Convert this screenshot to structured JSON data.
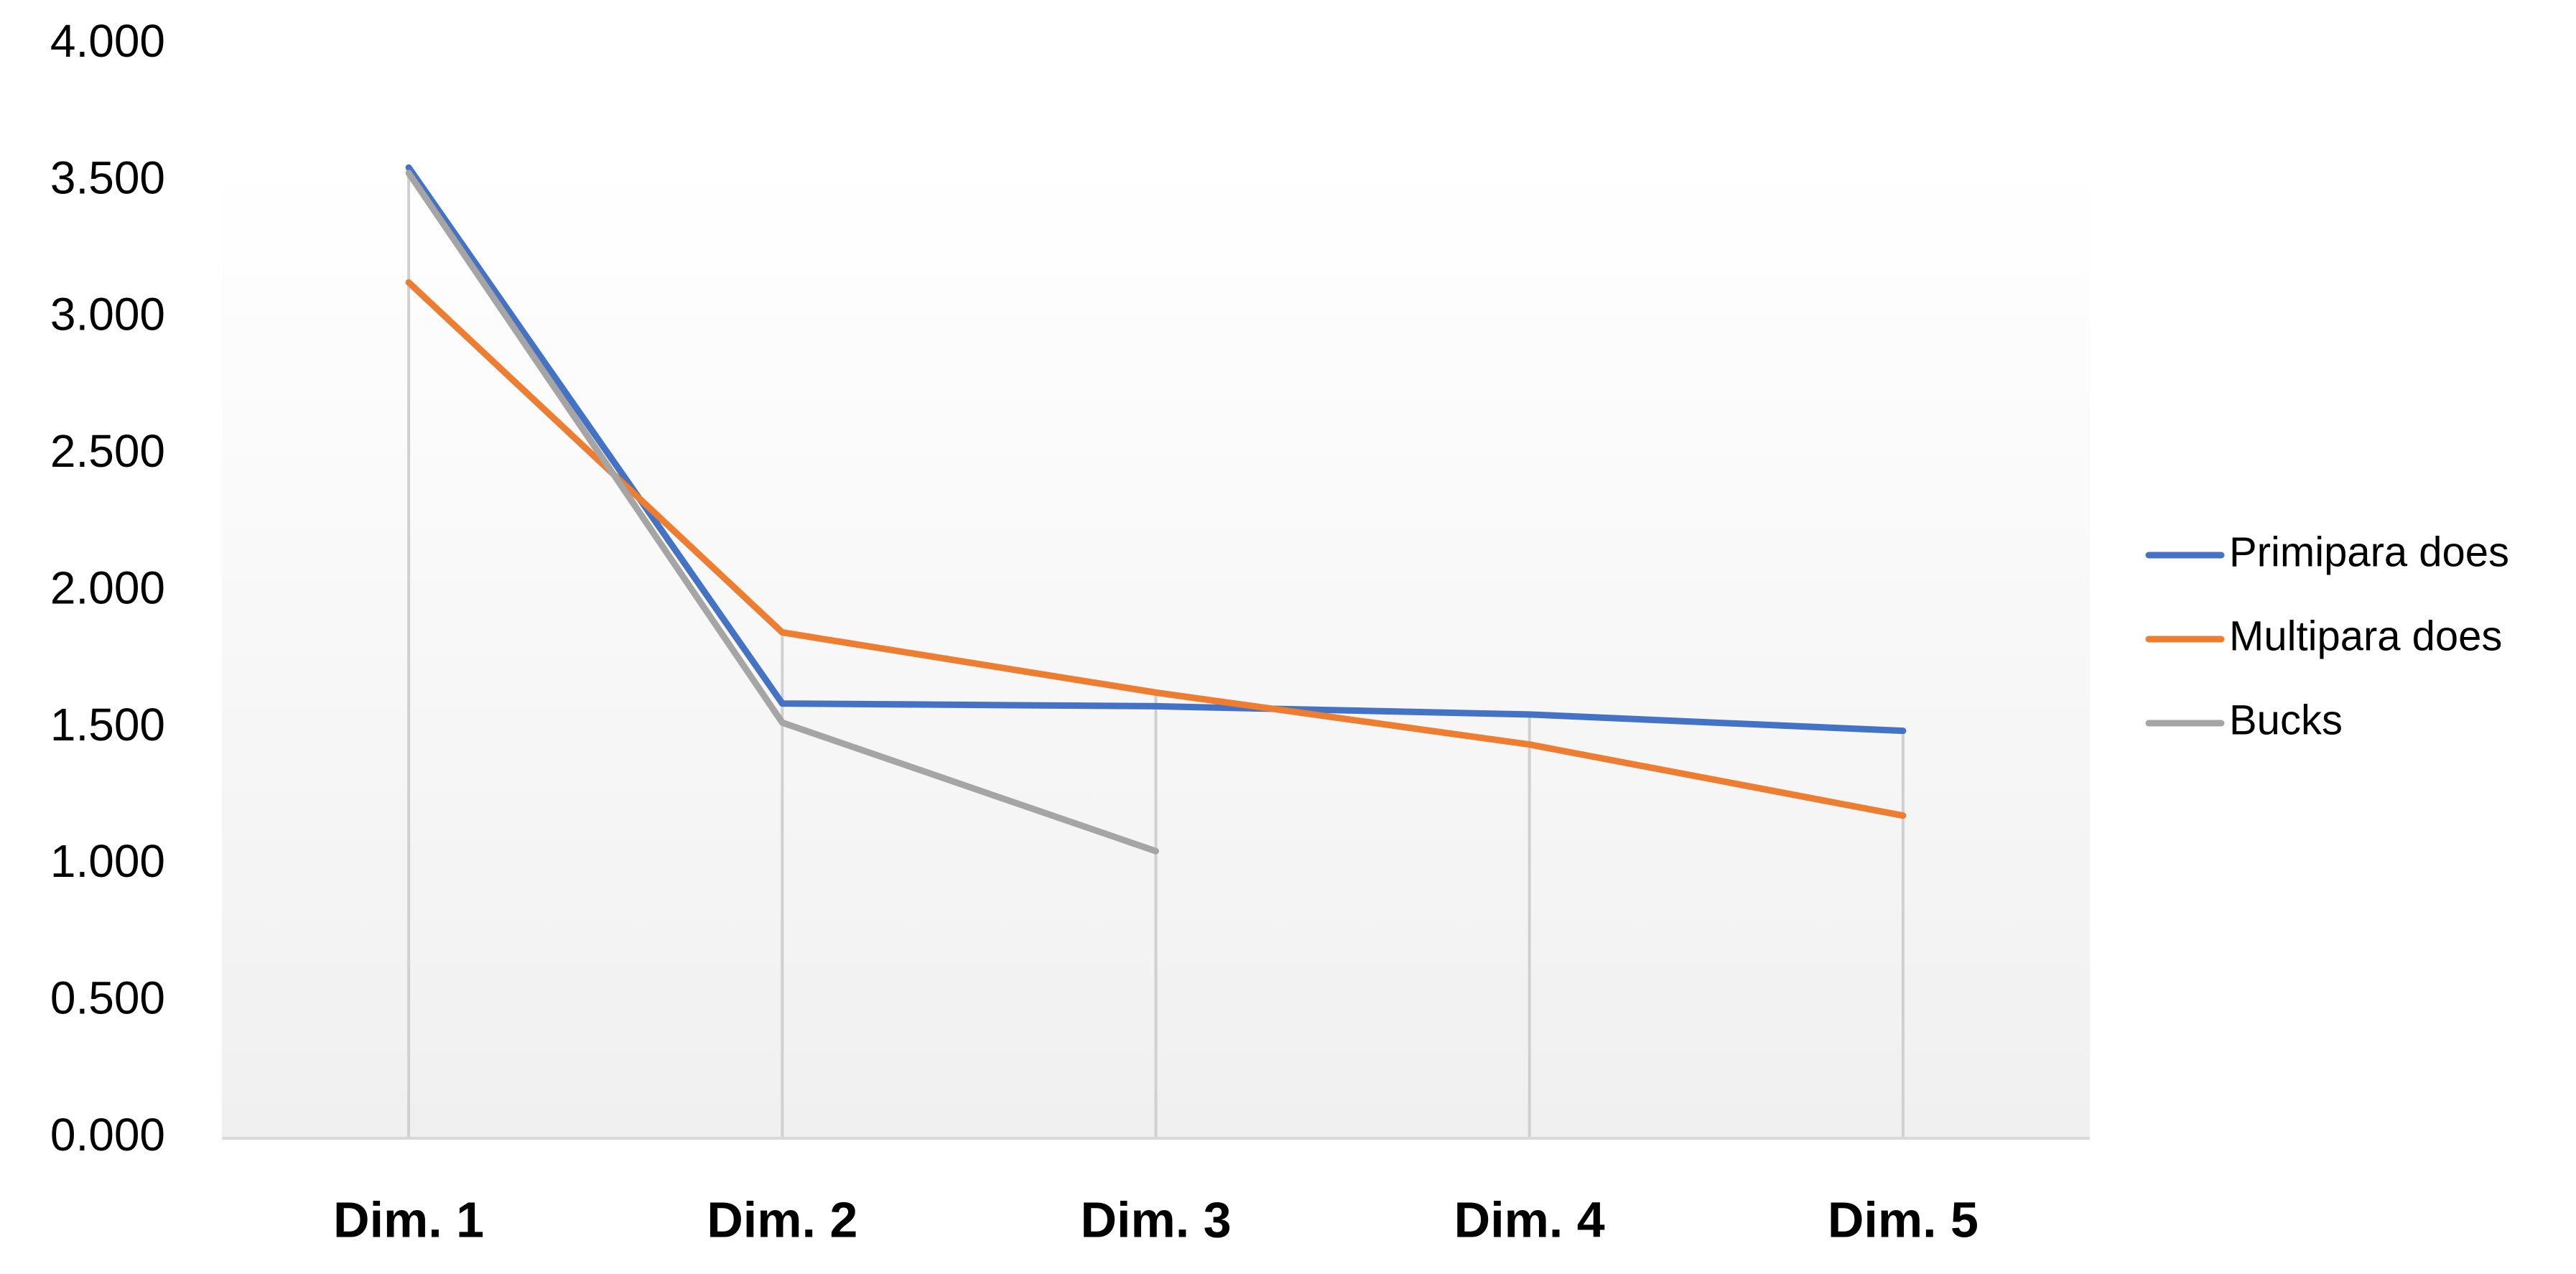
{
  "chart_data": {
    "type": "line",
    "categories": [
      "Dim. 1",
      "Dim. 2",
      "Dim. 3",
      "Dim. 4",
      "Dim. 5"
    ],
    "series": [
      {
        "name": "Primipara does",
        "color": "#4472c4",
        "values": [
          3.55,
          1.59,
          1.58,
          1.55,
          1.49
        ]
      },
      {
        "name": "Multipara does",
        "color": "#ed7d31",
        "values": [
          3.13,
          1.85,
          1.63,
          1.44,
          1.18
        ]
      },
      {
        "name": "Bucks",
        "color": "#a5a5a5",
        "values": [
          3.53,
          1.52,
          1.05,
          null,
          null
        ]
      }
    ],
    "ylim": [
      0,
      4
    ],
    "yticks": [
      {
        "value": 0,
        "label": "0.000"
      },
      {
        "value": 0.5,
        "label": "0.500"
      },
      {
        "value": 1,
        "label": "1.000"
      },
      {
        "value": 1.5,
        "label": "1.500"
      },
      {
        "value": 2,
        "label": "2.000"
      },
      {
        "value": 2.5,
        "label": "2.500"
      },
      {
        "value": 3,
        "label": "3.000"
      },
      {
        "value": 3.5,
        "label": "3.500"
      },
      {
        "value": 4,
        "label": "4.000"
      }
    ],
    "legend": "right"
  }
}
